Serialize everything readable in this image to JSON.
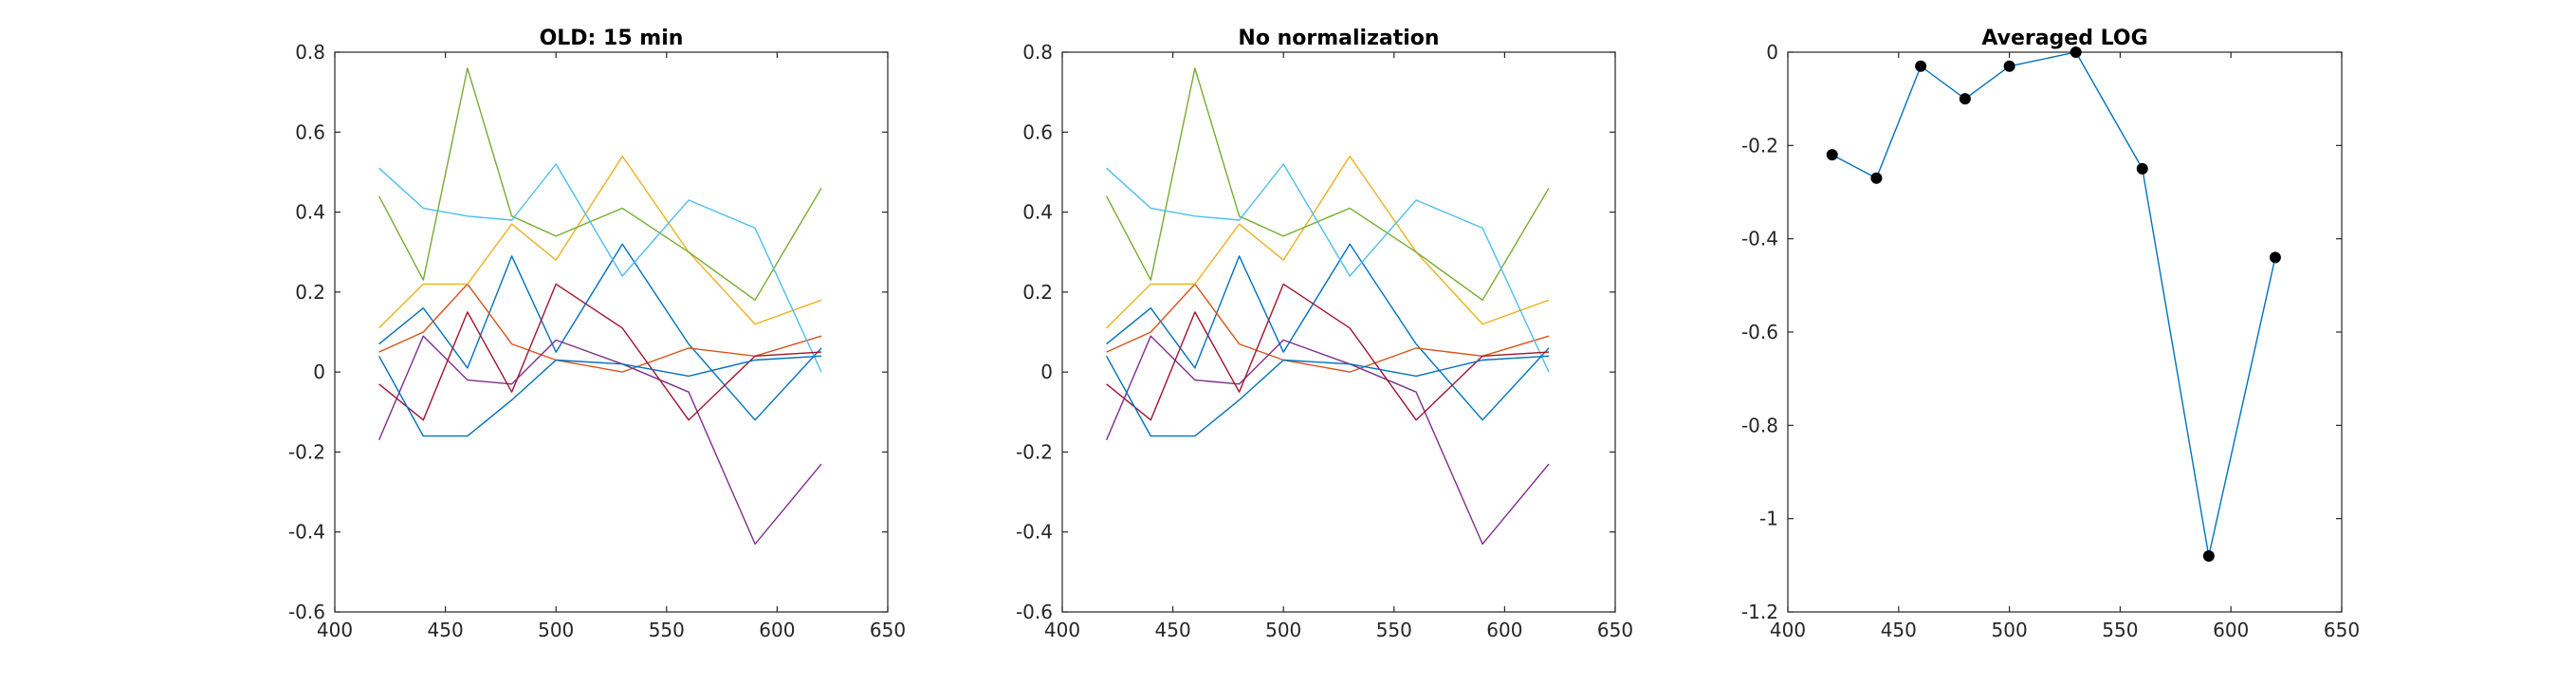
{
  "chart_data": [
    {
      "type": "line",
      "title": "OLD: 15 min",
      "x": [
        420,
        440,
        460,
        480,
        500,
        530,
        560,
        590,
        620
      ],
      "xlim": [
        400,
        650
      ],
      "ylim": [
        -0.6,
        0.8
      ],
      "xticks": [
        400,
        450,
        500,
        550,
        600,
        650
      ],
      "xtick_labels": [
        "400",
        "450",
        "500",
        "550",
        "600",
        "650"
      ],
      "yticks": [
        -0.6,
        -0.4,
        -0.2,
        0,
        0.2,
        0.4,
        0.6,
        0.8
      ],
      "ytick_labels": [
        "-0.6",
        "-0.4",
        "-0.2",
        "0",
        "0.2",
        "0.4",
        "0.6",
        "0.8"
      ],
      "grid": false,
      "markers": false,
      "series": [
        {
          "color": "#0072BD",
          "values": [
            0.07,
            0.16,
            0.01,
            0.29,
            0.05,
            0.32,
            0.07,
            -0.12,
            0.06
          ]
        },
        {
          "color": "#D95319",
          "values": [
            0.05,
            0.1,
            0.22,
            0.07,
            0.03,
            0.0,
            0.06,
            0.04,
            0.09
          ]
        },
        {
          "color": "#EDB120",
          "values": [
            0.11,
            0.22,
            0.22,
            0.37,
            0.28,
            0.54,
            0.3,
            0.12,
            0.18
          ]
        },
        {
          "color": "#7E2F8E",
          "values": [
            -0.17,
            0.09,
            -0.02,
            -0.03,
            0.08,
            0.02,
            -0.05,
            -0.43,
            -0.23
          ]
        },
        {
          "color": "#77AC30",
          "values": [
            0.44,
            0.23,
            0.76,
            0.39,
            0.34,
            0.41,
            0.3,
            0.18,
            0.46
          ]
        },
        {
          "color": "#4DBEEE",
          "values": [
            0.51,
            0.41,
            0.39,
            0.38,
            0.52,
            0.24,
            0.43,
            0.36,
            0.0
          ]
        },
        {
          "color": "#A2142F",
          "values": [
            -0.03,
            -0.12,
            0.15,
            -0.05,
            0.22,
            0.11,
            -0.12,
            0.04,
            0.05
          ]
        },
        {
          "color": "#0072BD",
          "values": [
            0.04,
            -0.16,
            -0.16,
            -0.07,
            0.03,
            0.02,
            -0.01,
            0.03,
            0.04
          ]
        }
      ]
    },
    {
      "type": "line",
      "title": "No normalization",
      "x": [
        420,
        440,
        460,
        480,
        500,
        530,
        560,
        590,
        620
      ],
      "xlim": [
        400,
        650
      ],
      "ylim": [
        -0.6,
        0.8
      ],
      "xticks": [
        400,
        450,
        500,
        550,
        600,
        650
      ],
      "xtick_labels": [
        "400",
        "450",
        "500",
        "550",
        "600",
        "650"
      ],
      "yticks": [
        -0.6,
        -0.4,
        -0.2,
        0,
        0.2,
        0.4,
        0.6,
        0.8
      ],
      "ytick_labels": [
        "-0.6",
        "-0.4",
        "-0.2",
        "0",
        "0.2",
        "0.4",
        "0.6",
        "0.8"
      ],
      "grid": false,
      "markers": false,
      "series": [
        {
          "color": "#0072BD",
          "values": [
            0.07,
            0.16,
            0.01,
            0.29,
            0.05,
            0.32,
            0.07,
            -0.12,
            0.06
          ]
        },
        {
          "color": "#D95319",
          "values": [
            0.05,
            0.1,
            0.22,
            0.07,
            0.03,
            0.0,
            0.06,
            0.04,
            0.09
          ]
        },
        {
          "color": "#EDB120",
          "values": [
            0.11,
            0.22,
            0.22,
            0.37,
            0.28,
            0.54,
            0.3,
            0.12,
            0.18
          ]
        },
        {
          "color": "#7E2F8E",
          "values": [
            -0.17,
            0.09,
            -0.02,
            -0.03,
            0.08,
            0.02,
            -0.05,
            -0.43,
            -0.23
          ]
        },
        {
          "color": "#77AC30",
          "values": [
            0.44,
            0.23,
            0.76,
            0.39,
            0.34,
            0.41,
            0.3,
            0.18,
            0.46
          ]
        },
        {
          "color": "#4DBEEE",
          "values": [
            0.51,
            0.41,
            0.39,
            0.38,
            0.52,
            0.24,
            0.43,
            0.36,
            0.0
          ]
        },
        {
          "color": "#A2142F",
          "values": [
            -0.03,
            -0.12,
            0.15,
            -0.05,
            0.22,
            0.11,
            -0.12,
            0.04,
            0.05
          ]
        },
        {
          "color": "#0072BD",
          "values": [
            0.04,
            -0.16,
            -0.16,
            -0.07,
            0.03,
            0.02,
            -0.01,
            0.03,
            0.04
          ]
        }
      ]
    },
    {
      "type": "line",
      "title": "Averaged LOG",
      "x": [
        420,
        440,
        460,
        480,
        500,
        530,
        560,
        590,
        620
      ],
      "xlim": [
        400,
        650
      ],
      "ylim": [
        -1.2,
        0
      ],
      "xticks": [
        400,
        450,
        500,
        550,
        600,
        650
      ],
      "xtick_labels": [
        "400",
        "450",
        "500",
        "550",
        "600",
        "650"
      ],
      "yticks": [
        -1.2,
        -1,
        -0.8,
        -0.6,
        -0.4,
        -0.2,
        0
      ],
      "ytick_labels": [
        "-1.2",
        "-1",
        "-0.8",
        "-0.6",
        "-0.4",
        "-0.2",
        "0"
      ],
      "grid": false,
      "markers": true,
      "series": [
        {
          "color": "#0072BD",
          "marker_color": "#000000",
          "values": [
            -0.22,
            -0.27,
            -0.03,
            -0.1,
            -0.03,
            0.0,
            -0.25,
            -1.08,
            -0.44
          ]
        }
      ]
    }
  ]
}
